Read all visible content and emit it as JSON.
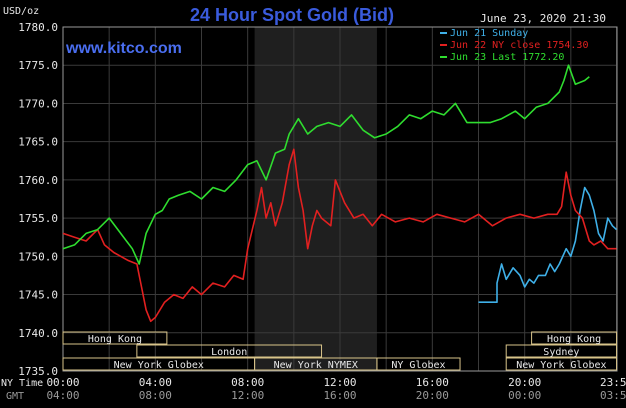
{
  "chart_data": {
    "type": "line",
    "title": "24 Hour Spot Gold (Bid)",
    "website": "www.kitco.com",
    "timestamp": "June 23, 2020 21:30",
    "ylabel": "USD/oz",
    "ylim": [
      1735,
      1780
    ],
    "y_ticks": [
      "1735.0",
      "1740.0",
      "1745.0",
      "1750.0",
      "1755.0",
      "1760.0",
      "1765.0",
      "1770.0",
      "1775.0",
      "1780.0"
    ],
    "x_range_hours": [
      0,
      24
    ],
    "x_ticks_ny": [
      "00:00",
      "04:00",
      "08:00",
      "12:00",
      "16:00",
      "20:00",
      "23:59"
    ],
    "x_ticks_gmt": [
      "04:00",
      "08:00",
      "12:00",
      "16:00",
      "20:00",
      "00:00",
      "03:59"
    ],
    "x_row_labels": {
      "ny": "NY Time",
      "gmt": "GMT"
    },
    "grid": true,
    "legend_position": "top-right",
    "series": [
      {
        "name": "Jun 21 Sunday",
        "color": "#3fb0e8",
        "x": [
          18.0,
          18.8,
          18.8,
          19.0,
          19.2,
          19.5,
          19.8,
          20.0,
          20.2,
          20.4,
          20.6,
          20.9,
          21.1,
          21.3,
          21.5,
          21.8,
          22.0,
          22.2,
          22.4,
          22.6,
          22.8,
          23.0,
          23.2,
          23.4,
          23.6,
          23.8,
          23.98
        ],
        "values": [
          1744.0,
          1744.0,
          1746.5,
          1749.0,
          1747.0,
          1748.5,
          1747.5,
          1746.0,
          1747.0,
          1746.5,
          1747.5,
          1747.5,
          1749.0,
          1748.0,
          1749.0,
          1751.0,
          1750.0,
          1752.0,
          1756.0,
          1759.0,
          1758.0,
          1756.0,
          1753.0,
          1752.0,
          1755.0,
          1754.0,
          1753.5
        ]
      },
      {
        "name": "Jun 22 NY close 1754.30",
        "color": "#e22020",
        "x": [
          0.0,
          0.5,
          1.0,
          1.5,
          1.8,
          2.2,
          2.8,
          3.2,
          3.4,
          3.6,
          3.8,
          4.0,
          4.4,
          4.8,
          5.2,
          5.6,
          6.0,
          6.5,
          7.0,
          7.4,
          7.8,
          8.0,
          8.4,
          8.6,
          8.8,
          9.0,
          9.2,
          9.5,
          9.8,
          10.0,
          10.2,
          10.4,
          10.6,
          10.8,
          11.0,
          11.2,
          11.6,
          11.8,
          12.2,
          12.6,
          13.0,
          13.4,
          13.8,
          14.4,
          15.0,
          15.6,
          16.2,
          16.8,
          17.4,
          18.0,
          18.6,
          19.2,
          19.8,
          20.4,
          21.0,
          21.4,
          21.6,
          21.8,
          22.0,
          22.2,
          22.5,
          22.8,
          23.0,
          23.3,
          23.6,
          23.98
        ],
        "values": [
          1753.0,
          1752.5,
          1752.0,
          1753.5,
          1751.5,
          1750.5,
          1749.5,
          1749.0,
          1746.0,
          1743.0,
          1741.5,
          1742.0,
          1744.0,
          1745.0,
          1744.5,
          1746.0,
          1745.0,
          1746.5,
          1746.0,
          1747.5,
          1747.0,
          1751.0,
          1756.0,
          1759.0,
          1755.0,
          1757.0,
          1754.0,
          1757.0,
          1762.0,
          1764.0,
          1759.0,
          1756.0,
          1751.0,
          1754.0,
          1756.0,
          1755.0,
          1754.0,
          1760.0,
          1757.0,
          1755.0,
          1755.5,
          1754.0,
          1755.5,
          1754.5,
          1755.0,
          1754.5,
          1755.5,
          1755.0,
          1754.5,
          1755.5,
          1754.0,
          1755.0,
          1755.5,
          1755.0,
          1755.5,
          1755.5,
          1756.5,
          1761.0,
          1758.0,
          1756.0,
          1755.0,
          1752.0,
          1751.5,
          1752.0,
          1751.0,
          1751.0
        ]
      },
      {
        "name": "Jun 23 Last 1772.20",
        "color": "#2fdd2f",
        "x": [
          0.0,
          0.5,
          1.0,
          1.5,
          2.0,
          2.5,
          3.0,
          3.3,
          3.6,
          4.0,
          4.3,
          4.6,
          5.0,
          5.5,
          6.0,
          6.5,
          7.0,
          7.5,
          8.0,
          8.4,
          8.8,
          9.2,
          9.6,
          9.8,
          10.2,
          10.6,
          11.0,
          11.5,
          12.0,
          12.5,
          13.0,
          13.5,
          14.0,
          14.5,
          15.0,
          15.5,
          16.0,
          16.5,
          17.0,
          17.5,
          18.0,
          18.5,
          19.0,
          19.3,
          19.6,
          20.0,
          20.5,
          21.0,
          21.5,
          21.7,
          21.9,
          22.2,
          22.6,
          22.8
        ],
        "values": [
          1751.0,
          1751.5,
          1753.0,
          1753.5,
          1755.0,
          1753.0,
          1751.0,
          1749.0,
          1753.0,
          1755.5,
          1756.0,
          1757.5,
          1758.0,
          1758.5,
          1757.5,
          1759.0,
          1758.5,
          1760.0,
          1762.0,
          1762.5,
          1760.0,
          1763.5,
          1764.0,
          1766.0,
          1768.0,
          1766.0,
          1767.0,
          1767.5,
          1767.0,
          1768.5,
          1766.5,
          1765.5,
          1766.0,
          1767.0,
          1768.5,
          1768.0,
          1769.0,
          1768.5,
          1770.0,
          1767.5,
          1767.5,
          1767.5,
          1768.0,
          1768.5,
          1769.0,
          1768.0,
          1769.5,
          1770.0,
          1771.5,
          1773.0,
          1775.0,
          1772.5,
          1773.0,
          1773.5
        ]
      }
    ],
    "sessions": [
      {
        "label": "Hong Kong",
        "start": 0.0,
        "end": 4.5,
        "row": 0
      },
      {
        "label": "Hong Kong",
        "start": 20.3,
        "end": 23.98,
        "row": 0
      },
      {
        "label": "London",
        "start": 3.2,
        "end": 11.2,
        "row": 1
      },
      {
        "label": "Sydney",
        "start": 19.2,
        "end": 23.98,
        "row": 1
      },
      {
        "label": "New York Globex",
        "start": 0.0,
        "end": 8.3,
        "row": 2
      },
      {
        "label": "New York NYMEX",
        "start": 8.3,
        "end": 13.6,
        "row": 2
      },
      {
        "label": "NY Globex",
        "start": 13.6,
        "end": 17.2,
        "row": 2
      },
      {
        "label": "New York Globex",
        "start": 19.2,
        "end": 23.98,
        "row": 2
      }
    ],
    "shaded_period": [
      8.3,
      13.6
    ]
  }
}
